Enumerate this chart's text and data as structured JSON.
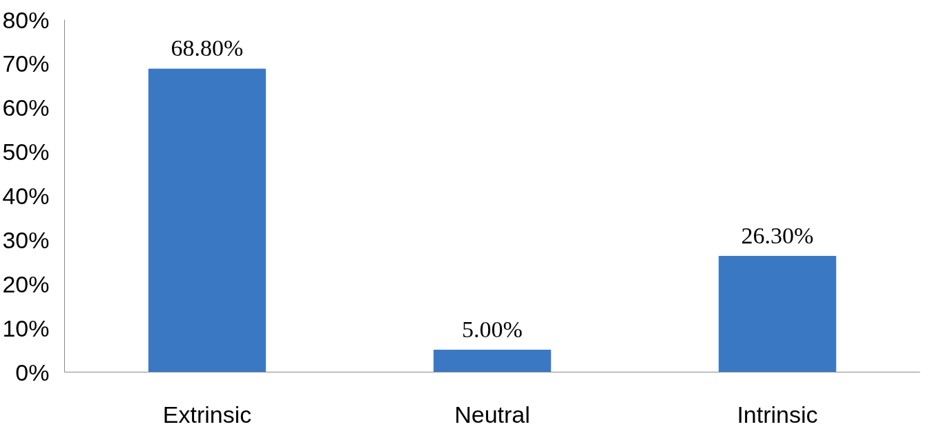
{
  "chart_data": {
    "type": "bar",
    "categories": [
      "Extrinsic",
      "Neutral",
      "Intrinsic"
    ],
    "values": [
      68.8,
      5.0,
      26.3
    ],
    "value_labels": [
      "68.80%",
      "5.00%",
      "26.30%"
    ],
    "color": "#3b78c4",
    "ylim": [
      0,
      80
    ],
    "yticks": [
      {
        "value": 0,
        "label": "0%"
      },
      {
        "value": 10,
        "label": "10%"
      },
      {
        "value": 20,
        "label": "20%"
      },
      {
        "value": 30,
        "label": "30%"
      },
      {
        "value": 40,
        "label": "40%"
      },
      {
        "value": 50,
        "label": "50%"
      },
      {
        "value": 60,
        "label": "60%"
      },
      {
        "value": 70,
        "label": "70%"
      },
      {
        "value": 80,
        "label": "80%"
      }
    ],
    "grid": false
  }
}
